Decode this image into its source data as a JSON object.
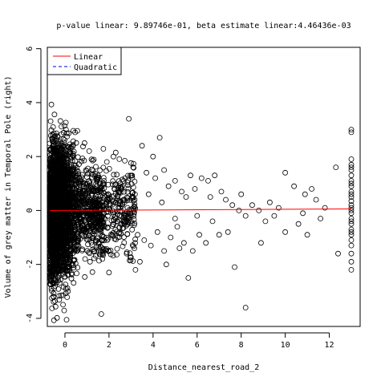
{
  "chart_data": {
    "type": "scatter",
    "title": "p-value linear: 9.89746e-01, beta estimate linear:4.46436e-03",
    "xlabel": "Distance_nearest_road_2",
    "ylabel": "Volume of grey matter in Temporal Pole (right)",
    "xlim": [
      -0.8,
      13.4
    ],
    "ylim": [
      -4.3,
      6.05
    ],
    "x_ticks": [
      0,
      2,
      4,
      6,
      8,
      10,
      12
    ],
    "y_ticks": [
      -4,
      -2,
      0,
      2,
      4,
      6
    ],
    "grid": false,
    "legend_position": "top-left",
    "legend": [
      {
        "label": "Linear",
        "color": "#ff0000",
        "style": "solid"
      },
      {
        "label": "Quadratic",
        "color": "#0000cc",
        "style": "dashed"
      }
    ],
    "fit_lines": {
      "linear": {
        "intercept": 0.0,
        "slope": 0.00446436,
        "x_range": [
          -0.7,
          13
        ]
      }
    },
    "points_sparse": [
      [
        2.9,
        3.4
      ],
      [
        3.1,
        1.6
      ],
      [
        3.5,
        2.4
      ],
      [
        3.7,
        1.4
      ],
      [
        4.0,
        2.0
      ],
      [
        4.3,
        2.7
      ],
      [
        4.1,
        1.2
      ],
      [
        4.5,
        1.5
      ],
      [
        4.7,
        0.9
      ],
      [
        5.0,
        1.1
      ],
      [
        5.3,
        0.7
      ],
      [
        5.5,
        0.5
      ],
      [
        5.7,
        1.3
      ],
      [
        5.9,
        0.8
      ],
      [
        6.2,
        1.2
      ],
      [
        6.5,
        1.1
      ],
      [
        6.8,
        1.3
      ],
      [
        7.1,
        0.7
      ],
      [
        7.3,
        0.4
      ],
      [
        7.6,
        0.2
      ],
      [
        7.9,
        0.0
      ],
      [
        8.2,
        -0.2
      ],
      [
        8.5,
        0.2
      ],
      [
        8.8,
        0.0
      ],
      [
        9.3,
        0.3
      ],
      [
        9.7,
        0.1
      ],
      [
        10.0,
        1.4
      ],
      [
        10.4,
        0.9
      ],
      [
        10.9,
        0.6
      ],
      [
        11.4,
        0.4
      ],
      [
        11.8,
        0.1
      ],
      [
        12.3,
        1.6
      ],
      [
        3.0,
        -0.4
      ],
      [
        3.3,
        -0.9
      ],
      [
        3.6,
        -1.1
      ],
      [
        3.9,
        -1.3
      ],
      [
        4.2,
        -0.8
      ],
      [
        4.5,
        -1.5
      ],
      [
        4.8,
        -1.0
      ],
      [
        5.1,
        -0.6
      ],
      [
        5.4,
        -1.2
      ],
      [
        5.6,
        -2.5
      ],
      [
        5.8,
        -1.5
      ],
      [
        6.1,
        -0.9
      ],
      [
        6.4,
        -1.2
      ],
      [
        6.7,
        -0.4
      ],
      [
        7.0,
        -0.9
      ],
      [
        7.4,
        -0.8
      ],
      [
        7.7,
        -2.1
      ],
      [
        8.2,
        -3.6
      ],
      [
        8.9,
        -1.2
      ],
      [
        9.1,
        -0.4
      ],
      [
        10.0,
        -0.8
      ],
      [
        10.6,
        -0.5
      ],
      [
        11.0,
        -0.9
      ],
      [
        11.6,
        -0.3
      ],
      [
        12.4,
        -1.6
      ],
      [
        3.2,
        -2.2
      ],
      [
        3.4,
        -1.9
      ],
      [
        4.6,
        -2.0
      ],
      [
        5.2,
        -1.4
      ],
      [
        6.0,
        -0.2
      ],
      [
        2.8,
        -1.6
      ],
      [
        2.6,
        0.9
      ],
      [
        2.4,
        -1.0
      ],
      [
        2.2,
        2.0
      ],
      [
        2.0,
        -2.3
      ],
      [
        1.9,
        1.8
      ],
      [
        1.7,
        -1.8
      ],
      [
        1.5,
        1.3
      ],
      [
        1.3,
        -1.5
      ],
      [
        1.1,
        2.2
      ],
      [
        3.8,
        0.6
      ],
      [
        4.4,
        0.3
      ],
      [
        5.0,
        -0.3
      ],
      [
        6.6,
        0.5
      ],
      [
        8.0,
        0.6
      ],
      [
        9.5,
        -0.2
      ],
      [
        10.8,
        -0.1
      ],
      [
        11.2,
        0.8
      ]
    ],
    "points_column_x13": [
      -2.2,
      -1.9,
      -1.6,
      -1.3,
      -1.1,
      -0.9,
      -0.7,
      -0.5,
      -0.3,
      -0.1,
      0.0,
      0.2,
      0.35,
      0.5,
      0.7,
      0.9,
      1.1,
      1.3,
      1.5,
      1.7,
      1.9,
      2.9,
      3.0,
      -0.8,
      -0.4,
      0.1,
      0.6,
      1.0,
      1.6
    ],
    "dense_cluster_description_values": {
      "x_center": 0.0,
      "x_spread": 0.8,
      "y_center": 0.0,
      "y_spread": 1.2,
      "count_estimate": 3000
    }
  }
}
